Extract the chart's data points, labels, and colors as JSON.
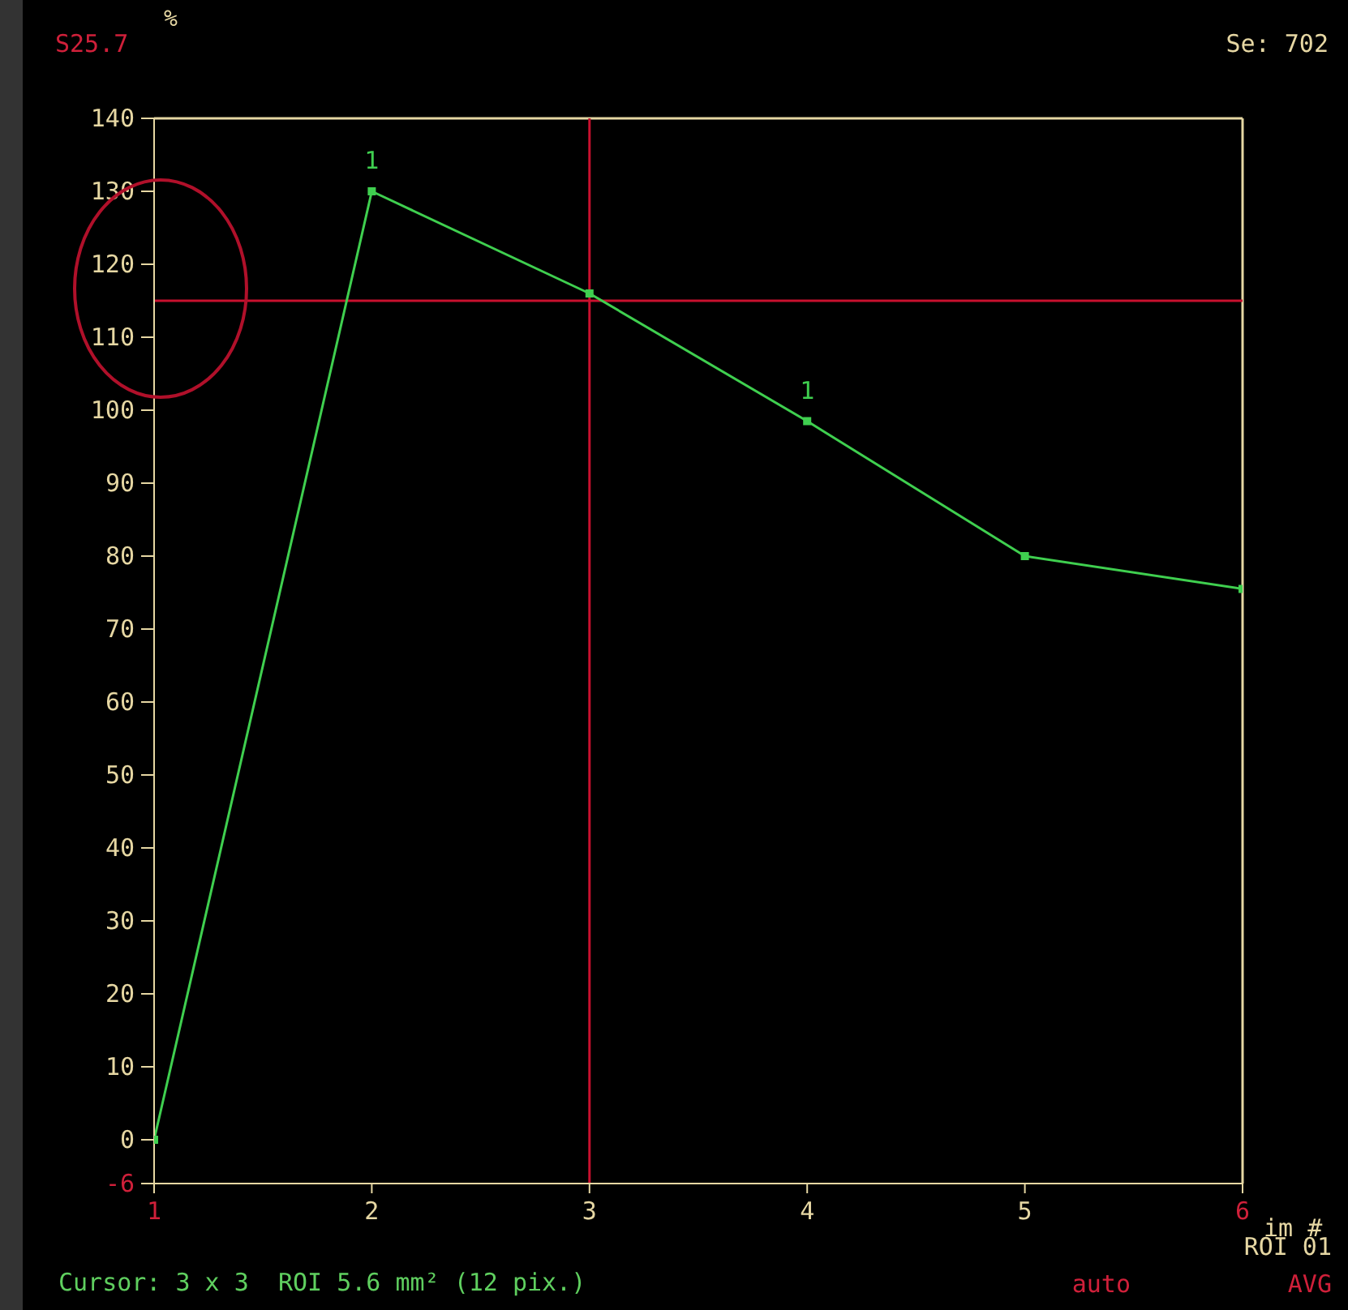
{
  "chart_data": {
    "type": "line",
    "xlabel": "im #",
    "ylabel": "%",
    "x": [
      1,
      2,
      3,
      4,
      5,
      6
    ],
    "series": [
      {
        "color": "#3fcf4f",
        "values": [
          0,
          130,
          116,
          98.5,
          80,
          75.5
        ]
      }
    ],
    "xlim": [
      1,
      6
    ],
    "xticks": [
      1,
      2,
      3,
      4,
      5,
      6
    ],
    "ylim": [
      -6,
      140
    ],
    "yticks": [
      -6,
      0,
      10,
      20,
      30,
      40,
      50,
      60,
      70,
      80,
      90,
      100,
      110,
      120,
      130,
      140
    ],
    "ref_lines": [
      {
        "axis": "x",
        "value": 3,
        "color": "#c8102e"
      },
      {
        "axis": "y",
        "value": 115,
        "color": "#c8102e"
      }
    ],
    "marker": "square",
    "line_style": "solid",
    "annotations": [
      "S25.7",
      "Se: 702",
      "Cursor: 3 x 3  ROI 5.6 mm² (12 pix.)",
      "ROI 01",
      "auto",
      "AVG",
      {
        "text": "1",
        "x": 2,
        "y": 130
      },
      {
        "text": "1",
        "x": 4,
        "y": 98.5
      }
    ]
  }
}
